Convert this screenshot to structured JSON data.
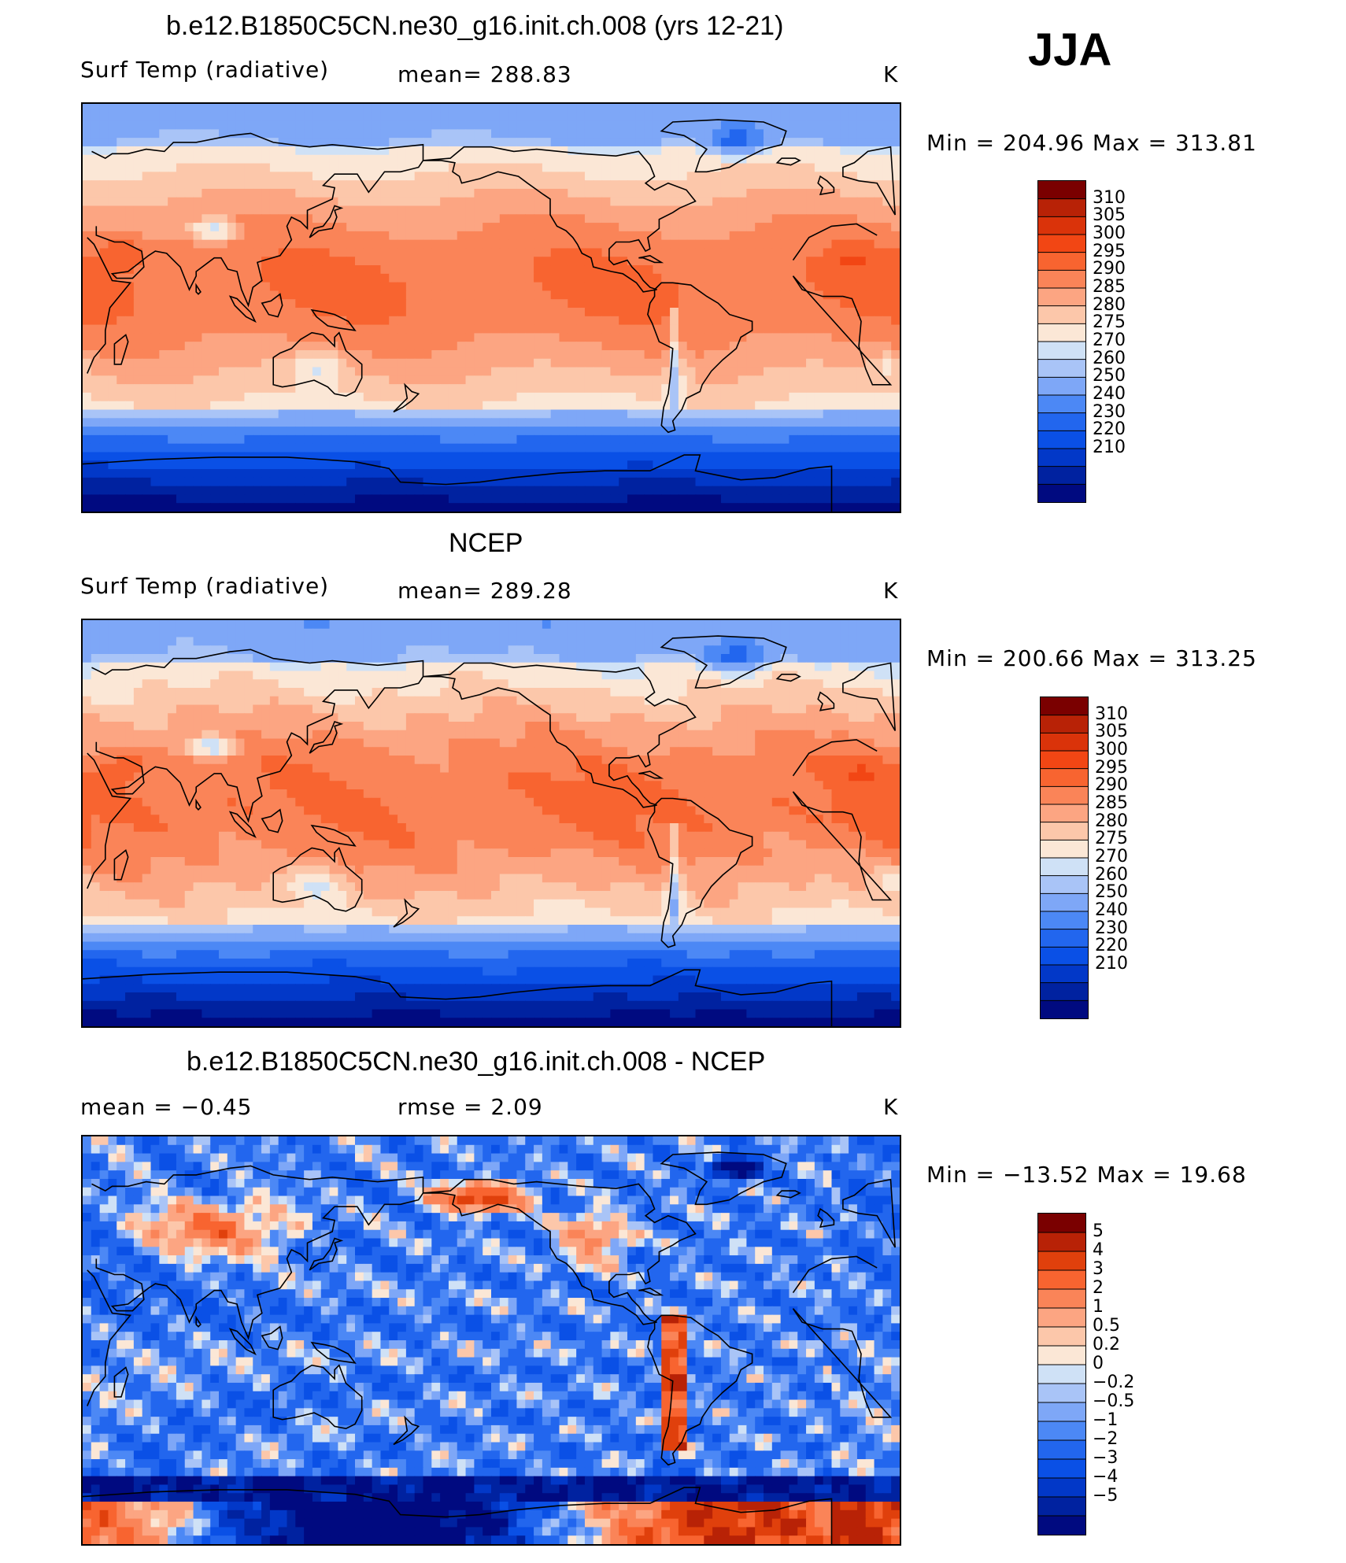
{
  "season": "JJA",
  "colors": {
    "temp": [
      "#000a80",
      "#0022a0",
      "#0238c8",
      "#0a50e6",
      "#2266ee",
      "#4c88f5",
      "#7ea7f7",
      "#a9c4f7",
      "#cfe1f6",
      "#fbe7d6",
      "#fcc7aa",
      "#fca582",
      "#fa8458",
      "#f86430",
      "#f24614",
      "#da330a",
      "#b82206",
      "#7a0000"
    ],
    "diff": [
      "#000a80",
      "#0022a0",
      "#0238c8",
      "#0a50e6",
      "#2266ee",
      "#4c88f5",
      "#7ea7f7",
      "#a9c4f7",
      "#cfe1f6",
      "#fbe7d6",
      "#fcc7aa",
      "#fca582",
      "#fa8458",
      "#f86430",
      "#e0400c",
      "#b82206",
      "#7a0000"
    ]
  },
  "panels": [
    {
      "title": "b.e12.B1850C5CN.ne30_g16.init.ch.008 (yrs 12-21)",
      "left_label": "Surf Temp (radiative)",
      "center_label": "mean=  288.83",
      "unit": "K",
      "minmax": "Min  =  204.96  Max  =  313.81",
      "colorbar_labels": [
        "310",
        "305",
        "300",
        "295",
        "290",
        "285",
        "280",
        "275",
        "270",
        "260",
        "250",
        "240",
        "230",
        "220",
        "210"
      ]
    },
    {
      "title": "NCEP",
      "left_label": "Surf Temp (radiative)",
      "center_label": "mean=  289.28",
      "unit": "K",
      "minmax": "Min  =  200.66  Max  =  313.25",
      "colorbar_labels": [
        "310",
        "305",
        "300",
        "295",
        "290",
        "285",
        "280",
        "275",
        "270",
        "260",
        "250",
        "240",
        "230",
        "220",
        "210"
      ]
    },
    {
      "title": "b.e12.B1850C5CN.ne30_g16.init.ch.008 - NCEP",
      "left_label": "mean  =     −0.45",
      "center_label": "rmse  =      2.09",
      "unit": "K",
      "minmax": "Min  =  −13.52  Max  =    19.68",
      "colorbar_labels": [
        "5",
        "4",
        "3",
        "2",
        "1",
        "0.5",
        "0.2",
        "0",
        "−0.2",
        "−0.5",
        "−1",
        "−2",
        "−3",
        "−4",
        "−5"
      ]
    }
  ],
  "chart_data": [
    {
      "type": "heatmap",
      "title": "b.e12.B1850C5CN.ne30_g16.init.ch.008 (yrs 12-21)",
      "variable": "Surf Temp (radiative)",
      "units": "K",
      "mean": 288.83,
      "min": 204.96,
      "max": 313.81,
      "levels": [
        210,
        220,
        230,
        240,
        250,
        260,
        270,
        275,
        280,
        285,
        290,
        295,
        300,
        305,
        310
      ],
      "season": "JJA"
    },
    {
      "type": "heatmap",
      "title": "NCEP",
      "variable": "Surf Temp (radiative)",
      "units": "K",
      "mean": 289.28,
      "min": 200.66,
      "max": 313.25,
      "levels": [
        210,
        220,
        230,
        240,
        250,
        260,
        270,
        275,
        280,
        285,
        290,
        295,
        300,
        305,
        310
      ],
      "season": "JJA"
    },
    {
      "type": "heatmap",
      "title": "b.e12.B1850C5CN.ne30_g16.init.ch.008 - NCEP",
      "variable": "Surf Temp (radiative) difference",
      "units": "K",
      "mean": -0.45,
      "rmse": 2.09,
      "min": -13.52,
      "max": 19.68,
      "levels": [
        -5,
        -4,
        -3,
        -2,
        -1,
        -0.5,
        -0.2,
        0,
        0.2,
        0.5,
        1,
        2,
        3,
        4,
        5
      ],
      "season": "JJA"
    }
  ]
}
